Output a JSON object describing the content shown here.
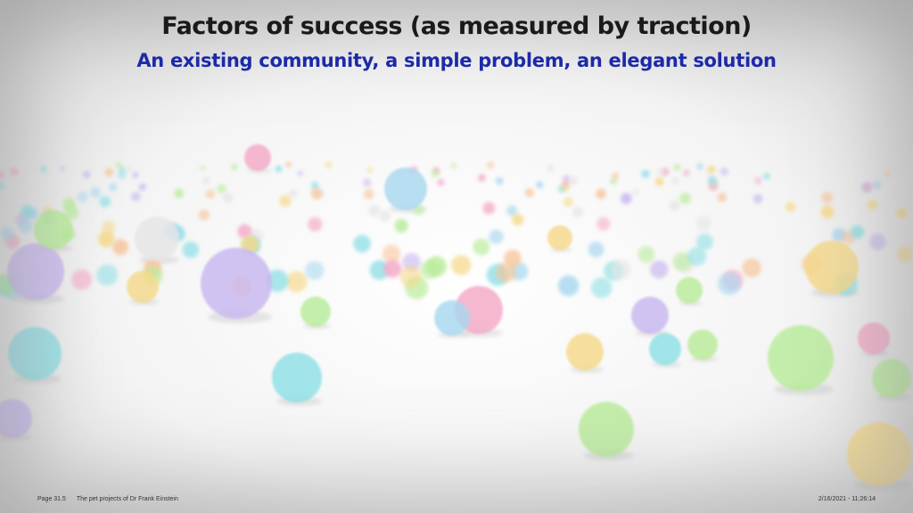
{
  "slide": {
    "title": "Factors of success (as measured by traction)",
    "subtitle": "An existing community, a simple problem, an elegant solution"
  },
  "footer": {
    "page": "Page 31.5",
    "deck_title": "The pet projects of Dr Frank Einstein",
    "timestamp": "2/16/2021 - 11:26:14"
  },
  "colors": {
    "title": "#1a1a1a",
    "subtitle": "#1c2aa8",
    "ball_palette": [
      "#f5a9c8",
      "#a9d8f0",
      "#c9b8f0",
      "#f5d98a",
      "#b9ec9a",
      "#8fe0e6",
      "#f7c59a",
      "#e6e6e6"
    ]
  },
  "background_image": "pastel-spheres-on-white-floor"
}
